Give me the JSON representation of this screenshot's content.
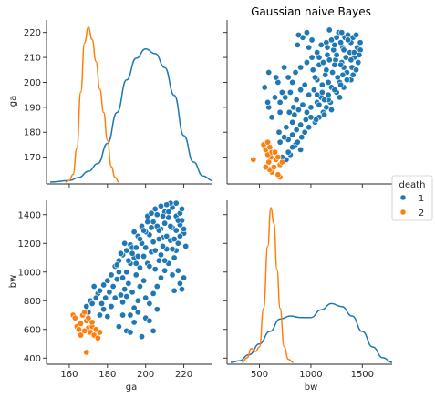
{
  "chart_data": {
    "type": "scatter",
    "subtype": "pairplot",
    "title": "Gaussian naive Bayes",
    "variables": [
      "ga",
      "bw"
    ],
    "xlabels": [
      "ga",
      "bw"
    ],
    "ylabels": [
      "ga",
      "bw"
    ],
    "ga_ticks": [
      160,
      180,
      200,
      220
    ],
    "ga_yticks": [
      170,
      180,
      190,
      200,
      210,
      220
    ],
    "bw_xticks": [
      500,
      1000,
      1500
    ],
    "bw_yticks": [
      400,
      600,
      800,
      1000,
      1200,
      1400
    ],
    "ga_range": [
      150,
      235
    ],
    "ga_yrange": [
      160,
      225
    ],
    "bw_range": [
      220,
      1790
    ],
    "bw_yrange": [
      370,
      1500
    ],
    "legend": {
      "title": "death",
      "entries": [
        {
          "label": "1",
          "color": "#1f77b4"
        },
        {
          "label": "2",
          "color": "#ff7f0e"
        }
      ],
      "position": "right"
    },
    "kde_ga": {
      "series": [
        {
          "class": "1",
          "color": "#1f77b4",
          "x": [
            150,
            160,
            165,
            170,
            175,
            180,
            185,
            190,
            195,
            200,
            205,
            210,
            215,
            220,
            225,
            230,
            235
          ],
          "density": [
            0.0,
            0.01,
            0.03,
            0.07,
            0.12,
            0.25,
            0.45,
            0.66,
            0.8,
            0.86,
            0.83,
            0.74,
            0.56,
            0.3,
            0.13,
            0.04,
            0.01
          ]
        },
        {
          "class": "2",
          "color": "#ff7f0e",
          "x": [
            158,
            160,
            162,
            164,
            166,
            168,
            170,
            172,
            174,
            176,
            178,
            180,
            182,
            184,
            186
          ],
          "density": [
            0.0,
            0.01,
            0.05,
            0.22,
            0.58,
            0.9,
            1.0,
            0.92,
            0.78,
            0.6,
            0.45,
            0.27,
            0.1,
            0.03,
            0.0
          ]
        }
      ]
    },
    "kde_bw": {
      "series": [
        {
          "class": "1",
          "color": "#1f77b4",
          "x": [
            220,
            300,
            400,
            500,
            600,
            700,
            800,
            900,
            1000,
            1100,
            1200,
            1300,
            1400,
            1500,
            1600,
            1700,
            1790
          ],
          "density": [
            0.0,
            0.01,
            0.05,
            0.12,
            0.2,
            0.28,
            0.3,
            0.29,
            0.29,
            0.34,
            0.38,
            0.36,
            0.3,
            0.2,
            0.1,
            0.03,
            0.0
          ]
        },
        {
          "class": "2",
          "color": "#ff7f0e",
          "x": [
            330,
            380,
            420,
            460,
            500,
            540,
            580,
            610,
            640,
            670,
            700,
            740,
            780,
            830
          ],
          "density": [
            0.0,
            0.03,
            0.09,
            0.07,
            0.1,
            0.35,
            0.75,
            1.0,
            0.9,
            0.6,
            0.35,
            0.1,
            0.02,
            0.0
          ]
        }
      ]
    },
    "points": {
      "class1": [
        [
          186,
          1000
        ],
        [
          188,
          1120
        ],
        [
          190,
          1150
        ],
        [
          192,
          1190
        ],
        [
          194,
          1100
        ],
        [
          196,
          1250
        ],
        [
          198,
          1320
        ],
        [
          200,
          1170
        ],
        [
          202,
          1260
        ],
        [
          204,
          1350
        ],
        [
          206,
          1400
        ],
        [
          208,
          1300
        ],
        [
          210,
          1420
        ],
        [
          212,
          1380
        ],
        [
          214,
          1450
        ],
        [
          216,
          1480
        ],
        [
          218,
          1330
        ],
        [
          220,
          1270
        ],
        [
          219,
          1360
        ],
        [
          217,
          1200
        ],
        [
          215,
          1100
        ],
        [
          213,
          1220
        ],
        [
          211,
          1160
        ],
        [
          209,
          1240
        ],
        [
          207,
          1080
        ],
        [
          205,
          1020
        ],
        [
          203,
          1140
        ],
        [
          201,
          1060
        ],
        [
          199,
          940
        ],
        [
          197,
          900
        ],
        [
          195,
          980
        ],
        [
          193,
          860
        ],
        [
          191,
          920
        ],
        [
          189,
          880
        ],
        [
          187,
          840
        ],
        [
          185,
          950
        ],
        [
          183,
          900
        ],
        [
          181,
          860
        ],
        [
          179,
          820
        ],
        [
          177,
          780
        ],
        [
          175,
          850
        ],
        [
          173,
          900
        ],
        [
          171,
          800
        ],
        [
          169,
          760
        ],
        [
          176,
          700
        ],
        [
          178,
          740
        ],
        [
          180,
          690
        ],
        [
          182,
          760
        ],
        [
          184,
          820
        ],
        [
          186,
          620
        ],
        [
          188,
          700
        ],
        [
          190,
          590
        ],
        [
          192,
          580
        ],
        [
          194,
          650
        ],
        [
          196,
          720
        ],
        [
          198,
          550
        ],
        [
          200,
          680
        ],
        [
          202,
          780
        ],
        [
          204,
          850
        ],
        [
          206,
          900
        ],
        [
          208,
          960
        ],
        [
          210,
          1010
        ],
        [
          212,
          1060
        ],
        [
          214,
          980
        ],
        [
          216,
          1150
        ],
        [
          218,
          920
        ],
        [
          220,
          960
        ],
        [
          208,
          1460
        ],
        [
          206,
          1320
        ],
        [
          204,
          1210
        ],
        [
          202,
          1040
        ],
        [
          200,
          1280
        ],
        [
          198,
          1200
        ],
        [
          196,
          1110
        ],
        [
          194,
          1280
        ],
        [
          192,
          1060
        ],
        [
          190,
          1000
        ],
        [
          188,
          960
        ],
        [
          186,
          1080
        ],
        [
          184,
          1040
        ],
        [
          182,
          980
        ],
        [
          180,
          940
        ],
        [
          178,
          910
        ],
        [
          176,
          870
        ],
        [
          174,
          820
        ],
        [
          172,
          780
        ],
        [
          170,
          720
        ],
        [
          210,
          1340
        ],
        [
          212,
          1420
        ],
        [
          214,
          1310
        ],
        [
          216,
          1390
        ],
        [
          218,
          1250
        ],
        [
          217,
          1010
        ],
        [
          215,
          870
        ],
        [
          219,
          880
        ],
        [
          221,
          1180
        ],
        [
          213,
          1480
        ],
        [
          211,
          1250
        ],
        [
          209,
          1180
        ],
        [
          207,
          1230
        ],
        [
          205,
          1150
        ],
        [
          203,
          1310
        ],
        [
          201,
          1390
        ],
        [
          199,
          1110
        ],
        [
          197,
          1030
        ],
        [
          195,
          1060
        ],
        [
          193,
          1170
        ],
        [
          191,
          1080
        ],
        [
          189,
          1200
        ],
        [
          187,
          1130
        ],
        [
          185,
          1050
        ],
        [
          200,
          820
        ],
        [
          202,
          660
        ],
        [
          204,
          590
        ],
        [
          206,
          740
        ],
        [
          196,
          800
        ],
        [
          194,
          750
        ],
        [
          192,
          700
        ],
        [
          190,
          830
        ],
        [
          188,
          790
        ],
        [
          210,
          1080
        ],
        [
          208,
          1120
        ],
        [
          214,
          1160
        ],
        [
          216,
          1290
        ],
        [
          218,
          1410
        ],
        [
          220,
          1300
        ],
        [
          219,
          1440
        ],
        [
          217,
          1360
        ],
        [
          215,
          1230
        ],
        [
          213,
          1320
        ],
        [
          211,
          1470
        ],
        [
          209,
          1390
        ],
        [
          207,
          1290
        ],
        [
          205,
          1440
        ],
        [
          203,
          1410
        ],
        [
          201,
          1350
        ],
        [
          199,
          1290
        ],
        [
          197,
          1230
        ],
        [
          195,
          1170
        ],
        [
          193,
          1130
        ]
      ],
      "class2": [
        [
          162,
          700
        ],
        [
          163,
          680
        ],
        [
          164,
          620
        ],
        [
          165,
          600
        ],
        [
          166,
          640
        ],
        [
          167,
          700
        ],
        [
          168,
          720
        ],
        [
          169,
          660
        ],
        [
          170,
          610
        ],
        [
          171,
          580
        ],
        [
          172,
          620
        ],
        [
          173,
          560
        ],
        [
          174,
          600
        ],
        [
          175,
          540
        ],
        [
          176,
          580
        ],
        [
          168,
          590
        ],
        [
          166,
          560
        ],
        [
          170,
          680
        ],
        [
          172,
          650
        ],
        [
          169,
          440
        ]
      ]
    }
  }
}
